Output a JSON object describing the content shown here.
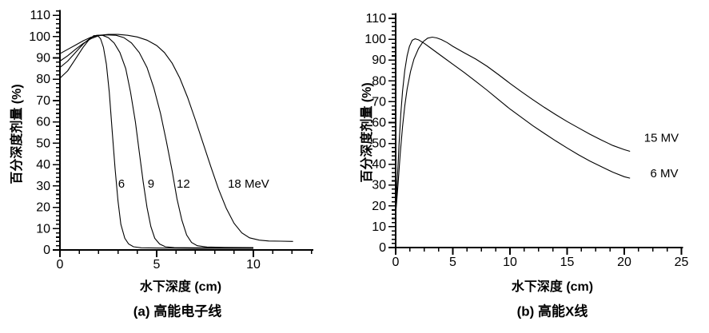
{
  "figure": {
    "background": "#ffffff",
    "ink": "#000000"
  },
  "chart_data": [
    {
      "id": "panel-a",
      "type": "line",
      "caption": "(a) 高能电子线",
      "xlabel": "水下深度 (cm)",
      "ylabel": "百分深度剂量 (%)",
      "legend_position": "none",
      "grid": false,
      "x_axis": {
        "min": 0,
        "max": 13,
        "major_step": 5,
        "minor_step": 1,
        "tick_end": 13,
        "axis_end": 13.1,
        "major_labels": [
          "0",
          "5",
          "10"
        ]
      },
      "y_axis": {
        "min": 0,
        "max": 110,
        "major_step": 10,
        "minor_step": 2,
        "tick_end": 112,
        "axis_end": 112.5,
        "major_labels": [
          "0",
          "10",
          "20",
          "30",
          "40",
          "50",
          "60",
          "70",
          "80",
          "90",
          "100",
          "110"
        ]
      },
      "series": [
        {
          "name": "6 MeV",
          "points": [
            [
              0,
              80.5
            ],
            [
              0.4,
              84
            ],
            [
              0.8,
              89.5
            ],
            [
              1.2,
              95
            ],
            [
              1.5,
              98.5
            ],
            [
              1.75,
              100.4
            ],
            [
              1.95,
              100.5
            ],
            [
              2.1,
              99
            ],
            [
              2.25,
              95
            ],
            [
              2.4,
              87
            ],
            [
              2.55,
              74
            ],
            [
              2.7,
              56
            ],
            [
              2.85,
              38
            ],
            [
              3.0,
              23
            ],
            [
              3.15,
              12
            ],
            [
              3.35,
              5.5
            ],
            [
              3.55,
              2.8
            ],
            [
              3.8,
              1.5
            ],
            [
              4.2,
              1
            ],
            [
              5,
              0.9
            ],
            [
              7,
              0.8
            ],
            [
              10,
              0.8
            ]
          ]
        },
        {
          "name": "9 MeV",
          "points": [
            [
              0,
              85.5
            ],
            [
              0.4,
              88.5
            ],
            [
              0.8,
              92.5
            ],
            [
              1.2,
              96.5
            ],
            [
              1.6,
              99.5
            ],
            [
              1.9,
              100.6
            ],
            [
              2.2,
              100.6
            ],
            [
              2.5,
              99.5
            ],
            [
              2.8,
              97
            ],
            [
              3.1,
              92.5
            ],
            [
              3.4,
              85
            ],
            [
              3.65,
              74
            ],
            [
              3.9,
              60
            ],
            [
              4.1,
              46
            ],
            [
              4.3,
              32
            ],
            [
              4.5,
              20
            ],
            [
              4.7,
              11
            ],
            [
              4.9,
              5.5
            ],
            [
              5.15,
              2.8
            ],
            [
              5.45,
              1.5
            ],
            [
              5.9,
              1.1
            ],
            [
              7,
              1
            ],
            [
              10,
              0.9
            ]
          ]
        },
        {
          "name": "12 MeV",
          "points": [
            [
              0,
              88.5
            ],
            [
              0.4,
              91
            ],
            [
              0.8,
              94
            ],
            [
              1.2,
              96.8
            ],
            [
              1.6,
              99
            ],
            [
              2.0,
              100.4
            ],
            [
              2.4,
              100.8
            ],
            [
              2.9,
              100.6
            ],
            [
              3.3,
              99.5
            ],
            [
              3.7,
              97
            ],
            [
              4.1,
              92.5
            ],
            [
              4.5,
              85.5
            ],
            [
              4.85,
              76
            ],
            [
              5.2,
              64
            ],
            [
              5.5,
              51
            ],
            [
              5.8,
              37
            ],
            [
              6.05,
              24
            ],
            [
              6.3,
              14
            ],
            [
              6.55,
              7
            ],
            [
              6.8,
              3.5
            ],
            [
              7.1,
              2
            ],
            [
              7.6,
              1.4
            ],
            [
              8.5,
              1.2
            ],
            [
              10,
              1.1
            ]
          ]
        },
        {
          "name": "18 MeV",
          "points": [
            [
              0,
              92
            ],
            [
              0.4,
              94
            ],
            [
              0.8,
              96
            ],
            [
              1.2,
              98
            ],
            [
              1.6,
              99.7
            ],
            [
              2.0,
              100.6
            ],
            [
              2.5,
              101
            ],
            [
              3.0,
              101
            ],
            [
              3.5,
              100.6
            ],
            [
              4.0,
              99.8
            ],
            [
              4.5,
              98.3
            ],
            [
              5.0,
              95.8
            ],
            [
              5.4,
              92.5
            ],
            [
              5.8,
              87.5
            ],
            [
              6.2,
              80.5
            ],
            [
              6.6,
              71.5
            ],
            [
              7.0,
              61
            ],
            [
              7.4,
              50
            ],
            [
              7.8,
              39
            ],
            [
              8.2,
              28.5
            ],
            [
              8.6,
              19.5
            ],
            [
              9.0,
              12.5
            ],
            [
              9.4,
              8
            ],
            [
              9.8,
              5.7
            ],
            [
              10.3,
              4.6
            ],
            [
              10.8,
              4.2
            ],
            [
              11.4,
              4.1
            ],
            [
              12.05,
              4
            ]
          ]
        }
      ],
      "annotations": [
        {
          "text": "6",
          "x": 3.18,
          "y": 31
        },
        {
          "text": "9",
          "x": 4.71,
          "y": 31
        },
        {
          "text": "12",
          "x": 6.38,
          "y": 31
        },
        {
          "text": "18 MeV",
          "x": 9.75,
          "y": 31
        }
      ]
    },
    {
      "id": "panel-b",
      "type": "line",
      "caption": "(b) 高能X线",
      "xlabel": "水下深度 (cm)",
      "ylabel": "百分深度剂量 (%)",
      "legend_position": "none",
      "grid": false,
      "x_axis": {
        "min": 0,
        "max": 25,
        "major_step": 5,
        "minor_step": 1.25,
        "tick_end": 25,
        "axis_end": 25.15,
        "major_labels": [
          "0",
          "5",
          "10",
          "15",
          "20",
          "25"
        ]
      },
      "y_axis": {
        "min": 0,
        "max": 110,
        "major_step": 10,
        "minor_step": 2,
        "tick_end": 112,
        "axis_end": 112.5,
        "major_labels": [
          "0",
          "10",
          "20",
          "30",
          "40",
          "50",
          "60",
          "70",
          "80",
          "90",
          "100",
          "110"
        ]
      },
      "series": [
        {
          "name": "15 MV",
          "points": [
            [
              0,
              16
            ],
            [
              0.2,
              30
            ],
            [
              0.4,
              45
            ],
            [
              0.6,
              58
            ],
            [
              0.8,
              68
            ],
            [
              1.0,
              76
            ],
            [
              1.3,
              84.5
            ],
            [
              1.6,
              90.5
            ],
            [
              2.0,
              95.5
            ],
            [
              2.4,
              98.8
            ],
            [
              2.8,
              100.5
            ],
            [
              3.2,
              101
            ],
            [
              3.6,
              100.6
            ],
            [
              4.0,
              99.8
            ],
            [
              4.5,
              98.4
            ],
            [
              5,
              96.6
            ],
            [
              6,
              93.5
            ],
            [
              7,
              90.5
            ],
            [
              8,
              87
            ],
            [
              9,
              83
            ],
            [
              10,
              78.8
            ],
            [
              11,
              74.8
            ],
            [
              12,
              71
            ],
            [
              13,
              67.3
            ],
            [
              14,
              63.8
            ],
            [
              15,
              60.5
            ],
            [
              16,
              57.4
            ],
            [
              17,
              54.4
            ],
            [
              18,
              51.6
            ],
            [
              19,
              49
            ],
            [
              20,
              47
            ],
            [
              20.5,
              46.2
            ]
          ]
        },
        {
          "name": "6 MV",
          "points": [
            [
              0,
              17
            ],
            [
              0.15,
              33
            ],
            [
              0.3,
              50
            ],
            [
              0.45,
              64
            ],
            [
              0.6,
              75
            ],
            [
              0.8,
              85
            ],
            [
              1.0,
              92
            ],
            [
              1.2,
              96.5
            ],
            [
              1.45,
              99.5
            ],
            [
              1.7,
              100.2
            ],
            [
              2.0,
              99.7
            ],
            [
              2.5,
              98
            ],
            [
              3,
              96
            ],
            [
              4,
              92
            ],
            [
              5,
              88
            ],
            [
              6,
              84
            ],
            [
              7,
              79.8
            ],
            [
              8,
              75.5
            ],
            [
              9,
              71
            ],
            [
              10,
              66.5
            ],
            [
              11,
              62.5
            ],
            [
              12,
              58.5
            ],
            [
              13,
              54.8
            ],
            [
              14,
              51.2
            ],
            [
              15,
              47.8
            ],
            [
              16,
              44.5
            ],
            [
              17,
              41.5
            ],
            [
              18,
              38.8
            ],
            [
              19,
              36.2
            ],
            [
              20,
              34
            ],
            [
              20.5,
              33.3
            ]
          ]
        }
      ],
      "annotations": [
        {
          "text": "15 MV",
          "x": 23.25,
          "y": 52.7
        },
        {
          "text": "6 MV",
          "x": 23.5,
          "y": 35.6
        }
      ]
    }
  ]
}
